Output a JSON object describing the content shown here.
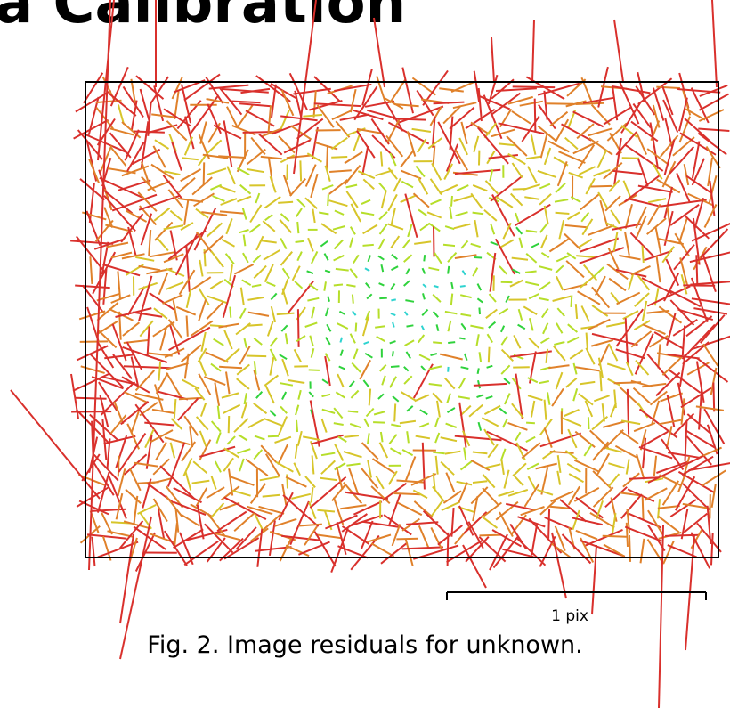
{
  "document": {
    "heading_fragment": "a Calibration",
    "caption": "Fig. 2. Image residuals for unknown."
  },
  "chart_data": {
    "type": "vector-field",
    "description_text": "",
    "scale_bar": {
      "label": "1 pix",
      "length": 1,
      "unit": "pix"
    },
    "grid": false,
    "color_ramp_by_magnitude": [
      "#2a6fdb",
      "#2ed3d0",
      "#2fd23c",
      "#b6de2a",
      "#d7c52a",
      "#e0812a",
      "#d9302c"
    ],
    "border_color": "#000000"
  }
}
